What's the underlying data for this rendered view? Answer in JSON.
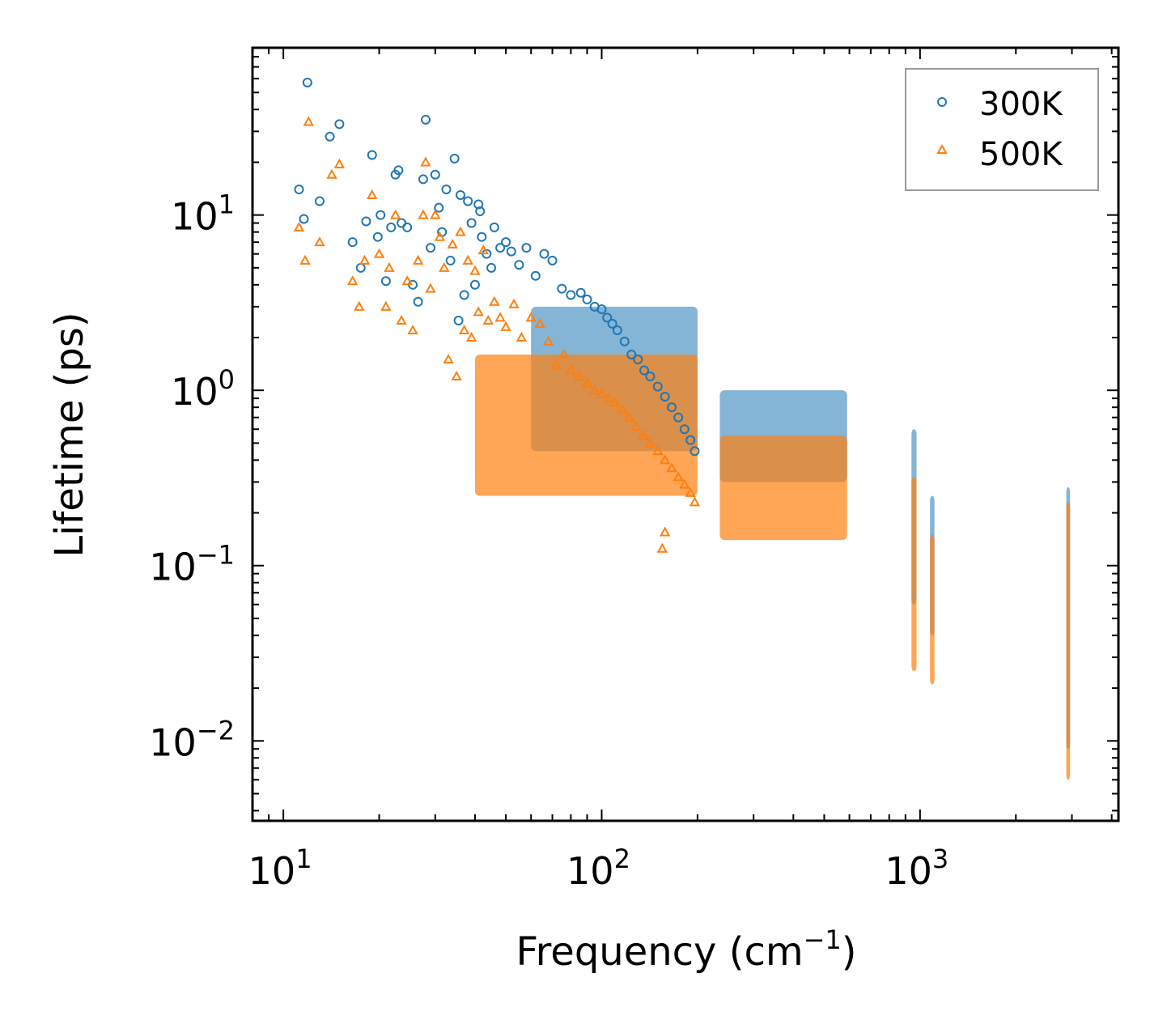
{
  "chart_data": {
    "type": "scatter",
    "title": "",
    "xlabel": "Frequency",
    "xlabel_unit_base": "cm",
    "xlabel_unit_exp": "−1",
    "ylabel": "Lifetime (ps)",
    "xscale": "log",
    "yscale": "log",
    "xlim": [
      8,
      4200
    ],
    "ylim": [
      0.0035,
      90
    ],
    "x_ticks": [
      {
        "value": 10,
        "base": "10",
        "exp": "1"
      },
      {
        "value": 100,
        "base": "10",
        "exp": "2"
      },
      {
        "value": 1000,
        "base": "10",
        "exp": "3"
      }
    ],
    "y_ticks": [
      {
        "value": 10,
        "base": "10",
        "exp": "1"
      },
      {
        "value": 1,
        "base": "10",
        "exp": "0"
      },
      {
        "value": 0.1,
        "base": "10",
        "exp": "−1"
      },
      {
        "value": 0.01,
        "base": "10",
        "exp": "−2"
      }
    ],
    "legend_position": "top-right",
    "series": [
      {
        "name": "300K",
        "marker": "circle",
        "color": "#1f77b4",
        "points": [
          [
            11.2,
            14
          ],
          [
            11.6,
            9.5
          ],
          [
            11.9,
            57
          ],
          [
            13.0,
            12
          ],
          [
            14.0,
            28
          ],
          [
            15.0,
            33
          ],
          [
            16.5,
            7
          ],
          [
            17.5,
            5
          ],
          [
            18.2,
            9.2
          ],
          [
            19.0,
            22
          ],
          [
            19.8,
            7.5
          ],
          [
            20.2,
            10
          ],
          [
            21.0,
            4.2
          ],
          [
            21.8,
            8.5
          ],
          [
            22.5,
            17
          ],
          [
            23.0,
            18
          ],
          [
            23.5,
            9
          ],
          [
            24.5,
            8.5
          ],
          [
            25.5,
            4
          ],
          [
            26.5,
            3.2
          ],
          [
            27.5,
            16
          ],
          [
            28.0,
            35
          ],
          [
            29.0,
            6.5
          ],
          [
            30.0,
            17
          ],
          [
            30.8,
            11
          ],
          [
            31.5,
            8
          ],
          [
            32.5,
            14
          ],
          [
            33.5,
            5.5
          ],
          [
            34.5,
            21
          ],
          [
            35.5,
            2.5
          ],
          [
            36.0,
            13
          ],
          [
            37.0,
            3.5
          ],
          [
            38.0,
            12
          ],
          [
            39.0,
            9
          ],
          [
            40.0,
            4
          ],
          [
            41.0,
            11.5
          ],
          [
            41.5,
            10.5
          ],
          [
            42.0,
            7.5
          ],
          [
            43.5,
            6
          ],
          [
            45.0,
            5
          ],
          [
            46.0,
            8.5
          ],
          [
            48.0,
            6.5
          ],
          [
            50.0,
            7
          ],
          [
            52.0,
            6.2
          ],
          [
            55.0,
            5.2
          ],
          [
            58.0,
            6.5
          ],
          [
            62.0,
            4.5
          ],
          [
            66.0,
            6
          ],
          [
            70.0,
            5.5
          ],
          [
            75.0,
            3.8
          ],
          [
            80.0,
            3.5
          ],
          [
            86.0,
            3.6
          ],
          [
            90.0,
            3.3
          ],
          [
            95.0,
            3.0
          ],
          [
            100.0,
            2.9
          ],
          [
            104.0,
            2.6
          ],
          [
            108.0,
            2.4
          ],
          [
            112.0,
            2.2
          ],
          [
            118.0,
            1.9
          ],
          [
            124.0,
            1.6
          ],
          [
            130.0,
            1.5
          ],
          [
            136.0,
            1.3
          ],
          [
            142.0,
            1.2
          ],
          [
            150.0,
            1.05
          ],
          [
            158.0,
            0.92
          ],
          [
            166.0,
            0.8
          ],
          [
            174.0,
            0.7
          ],
          [
            182.0,
            0.6
          ],
          [
            190.0,
            0.52
          ],
          [
            196.0,
            0.45
          ]
        ]
      },
      {
        "name": "500K",
        "marker": "triangle",
        "color": "#ff7f0e",
        "points": [
          [
            11.2,
            8.5
          ],
          [
            11.7,
            5.5
          ],
          [
            12.0,
            34
          ],
          [
            13.0,
            7
          ],
          [
            14.2,
            17
          ],
          [
            15.0,
            19.5
          ],
          [
            16.5,
            4.2
          ],
          [
            17.3,
            3
          ],
          [
            18.0,
            5.5
          ],
          [
            19.0,
            13
          ],
          [
            20.0,
            6
          ],
          [
            21.0,
            3
          ],
          [
            21.5,
            5
          ],
          [
            22.5,
            10
          ],
          [
            23.5,
            2.5
          ],
          [
            24.5,
            4.2
          ],
          [
            25.5,
            2.2
          ],
          [
            26.5,
            5.5
          ],
          [
            27.5,
            10
          ],
          [
            28.0,
            20
          ],
          [
            29.0,
            3.8
          ],
          [
            30.0,
            10
          ],
          [
            31.0,
            7.5
          ],
          [
            32.0,
            5
          ],
          [
            33.0,
            1.5
          ],
          [
            34.0,
            6.8
          ],
          [
            35.0,
            1.2
          ],
          [
            36.0,
            8
          ],
          [
            37.0,
            2.2
          ],
          [
            38.0,
            5.5
          ],
          [
            39.0,
            2
          ],
          [
            40.0,
            4.8
          ],
          [
            41.0,
            2.8
          ],
          [
            42.5,
            6.3
          ],
          [
            44.0,
            2.5
          ],
          [
            46.0,
            3.2
          ],
          [
            48.0,
            2.6
          ],
          [
            50.0,
            2.3
          ],
          [
            53.0,
            3.1
          ],
          [
            56.0,
            2.0
          ],
          [
            60.0,
            2.6
          ],
          [
            64.0,
            2.4
          ],
          [
            68.0,
            1.9
          ],
          [
            72.0,
            1.4
          ],
          [
            76.0,
            1.6
          ],
          [
            80.0,
            1.3
          ],
          [
            85.0,
            1.2
          ],
          [
            90.0,
            1.1
          ],
          [
            95.0,
            1.0
          ],
          [
            100.0,
            0.95
          ],
          [
            105.0,
            0.9
          ],
          [
            110.0,
            0.85
          ],
          [
            116.0,
            0.78
          ],
          [
            122.0,
            0.7
          ],
          [
            128.0,
            0.62
          ],
          [
            135.0,
            0.55
          ],
          [
            142.0,
            0.5
          ],
          [
            150.0,
            0.45
          ],
          [
            158.0,
            0.4
          ],
          [
            166.0,
            0.36
          ],
          [
            174.0,
            0.32
          ],
          [
            182.0,
            0.29
          ],
          [
            190.0,
            0.26
          ],
          [
            196.0,
            0.23
          ],
          [
            155.0,
            0.125
          ],
          [
            158.0,
            0.155
          ]
        ]
      }
    ],
    "bands": [
      {
        "series": "300K",
        "x": [
          60,
          200
        ],
        "ylow": 0.45,
        "yhigh": 3.0
      },
      {
        "series": "500K",
        "x": [
          40,
          200
        ],
        "ylow": 0.25,
        "yhigh": 1.6
      },
      {
        "series": "300K",
        "x": [
          235,
          590
        ],
        "ylow": 0.3,
        "yhigh": 1.0
      },
      {
        "series": "500K",
        "x": [
          235,
          590
        ],
        "ylow": 0.14,
        "yhigh": 0.55
      },
      {
        "series": "300K",
        "x": [
          940,
          975
        ],
        "ylow": 0.06,
        "yhigh": 0.6
      },
      {
        "series": "500K",
        "x": [
          940,
          975
        ],
        "ylow": 0.025,
        "yhigh": 0.32
      },
      {
        "series": "300K",
        "x": [
          1075,
          1110
        ],
        "ylow": 0.04,
        "yhigh": 0.25
      },
      {
        "series": "500K",
        "x": [
          1075,
          1110
        ],
        "ylow": 0.021,
        "yhigh": 0.15
      },
      {
        "series": "300K",
        "x": [
          2880,
          2960
        ],
        "ylow": 0.009,
        "yhigh": 0.28
      },
      {
        "series": "500K",
        "x": [
          2880,
          2960
        ],
        "ylow": 0.006,
        "yhigh": 0.23
      }
    ]
  }
}
